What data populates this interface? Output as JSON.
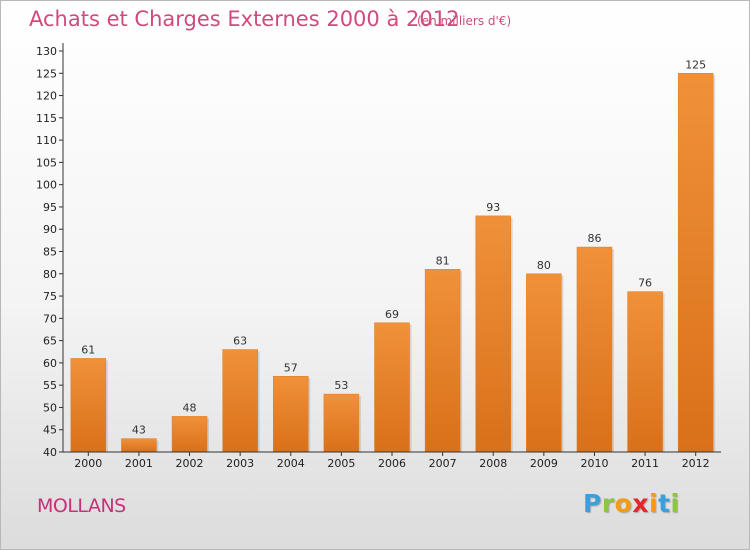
{
  "chart_data": {
    "type": "bar",
    "title": "Achats et Charges Externes 2000 à 2012",
    "subtitle": "(en milliers d'€)",
    "categories": [
      "2000",
      "2001",
      "2002",
      "2003",
      "2004",
      "2005",
      "2006",
      "2007",
      "2008",
      "2009",
      "2010",
      "2011",
      "2012"
    ],
    "values": [
      61,
      43,
      48,
      63,
      57,
      53,
      69,
      81,
      93,
      80,
      86,
      76,
      125
    ],
    "ylim": [
      40,
      130
    ],
    "ytick_step": 5,
    "xlabel": "",
    "ylabel": "",
    "grid": false,
    "bar_color": "#f0913a",
    "bar_color_dark": "#d9701a"
  },
  "footer": {
    "city": "MOLLANS",
    "logo_letters": [
      "P",
      "r",
      "o",
      "x",
      "i",
      "t",
      "i"
    ],
    "logo_colors": [
      "#3aa0dc",
      "#8cc63f",
      "#f39c12",
      "#e8262a",
      "#f39c12",
      "#3aa0dc",
      "#8cc63f"
    ]
  }
}
